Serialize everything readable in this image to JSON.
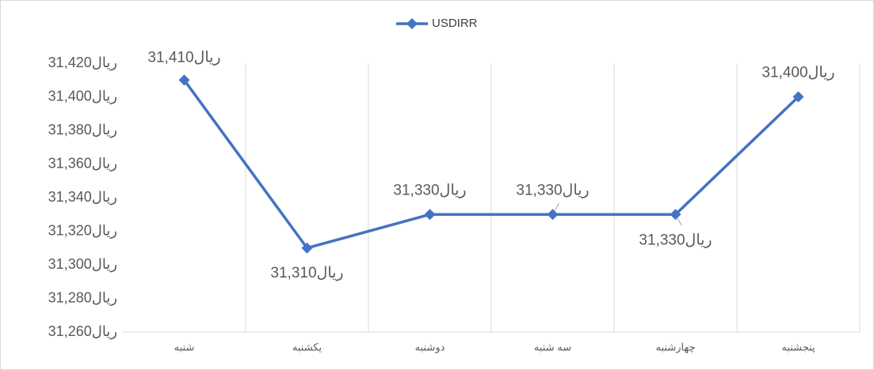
{
  "chart_data": {
    "type": "line",
    "categories": [
      "شنبه",
      "یکشنبه",
      "دوشنبه",
      "سه شنبه",
      "چهارشنبه",
      "پنجشنبه"
    ],
    "series": [
      {
        "name": "USDIRR",
        "color": "#4472c4",
        "values": [
          31410,
          31310,
          31330,
          31330,
          31330,
          31400
        ],
        "value_labels": [
          "31,410ریال",
          "31,310ریال",
          "31,330ریال",
          "31,330ریال",
          "31,330ریال",
          "31,400ریال"
        ]
      }
    ],
    "ylim": [
      31260,
      31420
    ],
    "yticks": [
      {
        "value": 31260,
        "label": "31,260ریال"
      },
      {
        "value": 31280,
        "label": "31,280ریال"
      },
      {
        "value": 31300,
        "label": "31,300ریال"
      },
      {
        "value": 31320,
        "label": "31,320ریال"
      },
      {
        "value": 31340,
        "label": "31,340ریال"
      },
      {
        "value": 31360,
        "label": "31,360ریال"
      },
      {
        "value": 31380,
        "label": "31,380ریال"
      },
      {
        "value": 31400,
        "label": "31,400ریال"
      },
      {
        "value": 31420,
        "label": "31,420ریال"
      }
    ],
    "legend": "top",
    "grid": "vertical"
  }
}
